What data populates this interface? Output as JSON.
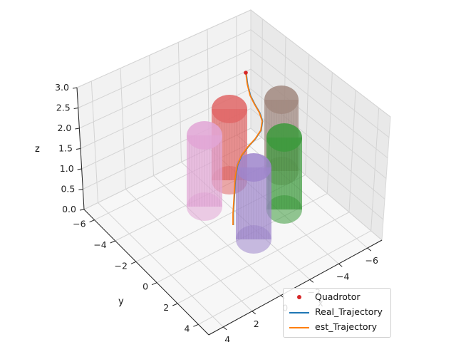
{
  "chart_data": {
    "type": "3d-line",
    "axes": {
      "x": {
        "label": "x",
        "ticks": [
          -6,
          -4,
          -2,
          0,
          2,
          4
        ]
      },
      "y": {
        "label": "y",
        "ticks": [
          -6,
          -4,
          -2,
          0,
          2,
          4
        ]
      },
      "z": {
        "label": "z",
        "ticks": [
          "0.0",
          "0.5",
          "1.0",
          "1.5",
          "2.0",
          "2.5",
          "3.0"
        ]
      }
    },
    "legend": {
      "placement": "lower-right",
      "entries": [
        {
          "label": "Quadrotor",
          "marker": "dot",
          "color": "#d62728"
        },
        {
          "label": "Real_Trajectory",
          "marker": "line",
          "color": "#1f77b4"
        },
        {
          "label": "est_Trajectory",
          "marker": "line",
          "color": "#ff7f0e"
        }
      ]
    },
    "obstacles": [
      {
        "name": "cylinder-red",
        "color": "#e06666"
      },
      {
        "name": "cylinder-brown",
        "color": "#a1887f"
      },
      {
        "name": "cylinder-pink",
        "color": "#e2a6d6"
      },
      {
        "name": "cylinder-green",
        "color": "#3c9a3c"
      },
      {
        "name": "cylinder-purple",
        "color": "#9f86cc"
      }
    ],
    "grid": true
  }
}
